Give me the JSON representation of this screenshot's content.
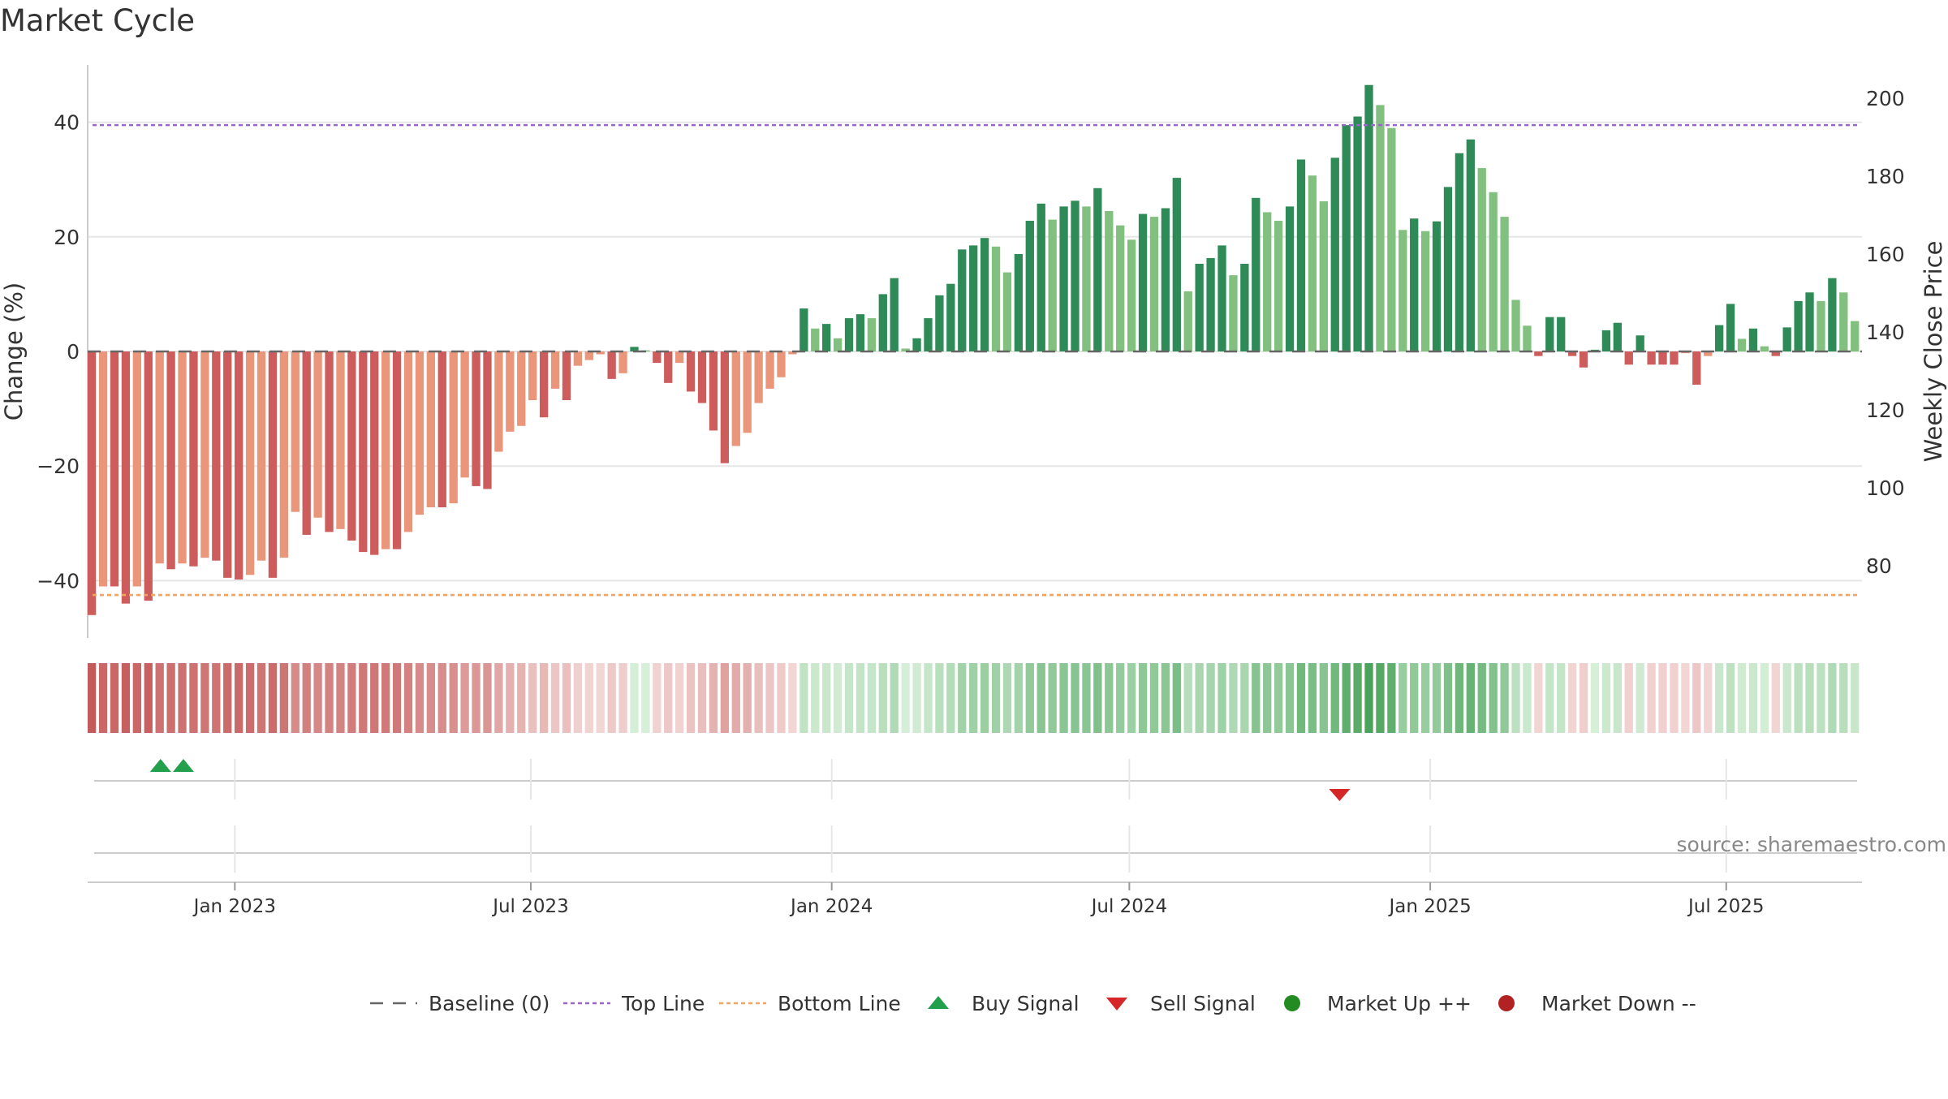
{
  "chart_data": {
    "type": "bar",
    "title": "Market Cycle",
    "ylabel": "Change (%)",
    "y2label": "Weekly Close Price",
    "ylim": [
      -50,
      50
    ],
    "yticks": [
      40,
      20,
      0,
      -20,
      -40
    ],
    "ytick_labels": [
      "40",
      "20",
      "0",
      "−20",
      "−40"
    ],
    "y2lim": [
      61.5,
      208.5
    ],
    "y2ticks": [
      200,
      180,
      160,
      140,
      120,
      100,
      80
    ],
    "x_start": "2022-10-03",
    "x_end": "2025-09-22",
    "xticks": [
      {
        "date": "2023-01-01",
        "label": "Jan 2023"
      },
      {
        "date": "2023-07-01",
        "label": "Jul 2023"
      },
      {
        "date": "2024-01-01",
        "label": "Jan 2024"
      },
      {
        "date": "2024-07-01",
        "label": "Jul 2024"
      },
      {
        "date": "2025-01-01",
        "label": "Jan 2025"
      },
      {
        "date": "2025-07-01",
        "label": "Jul 2025"
      }
    ],
    "top_line": 39.5,
    "bottom_line": -42.5,
    "week_start": "2022-10-03",
    "values": [
      -46,
      -41,
      -41,
      -44,
      -41,
      -43.5,
      -37,
      -38,
      -37,
      -37.5,
      -36,
      -36.5,
      -39.5,
      -39.8,
      -39,
      -36.5,
      -39.5,
      -36,
      -28,
      -32,
      -29,
      -31.5,
      -31,
      -33,
      -35,
      -35.5,
      -34.5,
      -34.5,
      -31.5,
      -28.5,
      -27.2,
      -27.2,
      -26.5,
      -22,
      -23.5,
      -24,
      -17.5,
      -14,
      -13,
      -8.5,
      -11.5,
      -6.5,
      -8.5,
      -2.5,
      -1.5,
      -0.5,
      -4.8,
      -3.8,
      0.8,
      0.2,
      -2,
      -5.5,
      -2,
      -7,
      -9,
      -13.8,
      -19.5,
      -16.5,
      -14.2,
      -9,
      -6.5,
      -4.5,
      -0.5,
      7.5,
      4,
      4.8,
      2.3,
      5.8,
      6.5,
      5.8,
      10,
      12.8,
      0.5,
      2.3,
      5.8,
      9.8,
      11.8,
      17.8,
      18.5,
      19.8,
      18.3,
      13.8,
      17,
      22.8,
      25.8,
      23,
      25.3,
      26.3,
      25.3,
      28.5,
      24.5,
      22,
      19.5,
      24,
      23.5,
      25,
      30.3,
      10.5,
      15.3,
      16.3,
      18.5,
      13.3,
      15.3,
      26.8,
      24.3,
      22.8,
      25.3,
      33.5,
      30.7,
      26.2,
      33.8,
      39.5,
      41,
      46.5,
      43,
      39,
      21.2,
      23.2,
      21,
      22.7,
      28.7,
      34.6,
      37,
      32,
      27.8,
      23.5,
      9,
      4.5,
      -0.8,
      6,
      6,
      -0.8,
      -2.8,
      0.3,
      3.7,
      5,
      -2.3,
      2.8,
      -2.3,
      -2.3,
      -2.3,
      -0.3,
      -5.8,
      -0.8,
      4.6,
      8.3,
      2.2,
      4,
      0.9,
      -0.8,
      4.2,
      8.8,
      10.3,
      8.8,
      12.8,
      10.3,
      5.3
    ],
    "signals": [
      {
        "type": "Buy Signal",
        "date": "2022-11-14"
      },
      {
        "type": "Buy Signal",
        "date": "2022-11-28"
      },
      {
        "type": "Sell Signal",
        "date": "2024-11-04"
      }
    ],
    "legend": [
      "Baseline (0)",
      "Top Line",
      "Bottom Line",
      "Buy Signal",
      "Sell Signal",
      "Market Up ++",
      "Market Down --"
    ],
    "legend_position": "bottom",
    "grid": true
  },
  "colors": {
    "up_strong": "#2e8b57",
    "up_light": "#82c07f",
    "down_strong": "#cd5c5c",
    "down_light": "#e9967a",
    "top_line": "#9966cc",
    "bottom_line": "#f4a460",
    "buy": "#22a04b",
    "sell": "#d62728",
    "market_up": "#228b22",
    "market_down": "#b22222",
    "grid": "#e6e6e6",
    "axis": "#cccccc",
    "source": "#888888",
    "baseline": "#666666"
  },
  "source_label": "source: sharemaestro.com"
}
